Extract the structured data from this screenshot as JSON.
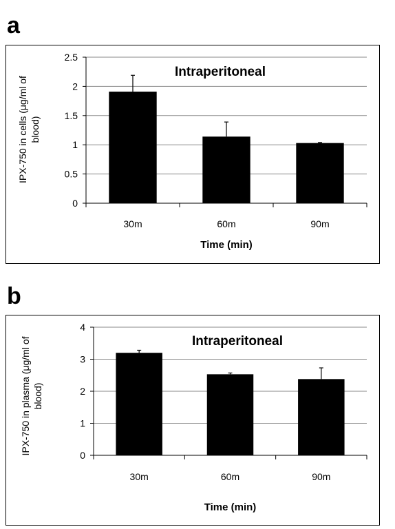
{
  "panels": {
    "a": {
      "letter": "a"
    },
    "b": {
      "letter": "b"
    }
  },
  "chart_data": [
    {
      "type": "bar",
      "title": "Intraperitoneal",
      "xlabel": "Time (min)",
      "ylabel_lines": [
        "IPX-750 in cells (μg/ml of",
        "blood)"
      ],
      "categories": [
        "30m",
        "60m",
        "90m"
      ],
      "values": [
        1.91,
        1.14,
        1.03
      ],
      "errors": [
        0.28,
        0.25,
        0.01
      ],
      "ylim": [
        0,
        2.5
      ],
      "yticks": [
        0,
        0.5,
        1,
        1.5,
        2,
        2.5
      ],
      "grid": true,
      "bar_color": "#000000",
      "grid_color": "#888888"
    },
    {
      "type": "bar",
      "title": "Intraperitoneal",
      "xlabel": "Time (min)",
      "ylabel_lines": [
        "IPX-750 in plasma (μg/ml of",
        "blood)"
      ],
      "categories": [
        "30m",
        "60m",
        "90m"
      ],
      "values": [
        3.2,
        2.53,
        2.38
      ],
      "errors": [
        0.08,
        0.04,
        0.35
      ],
      "ylim": [
        0,
        4
      ],
      "yticks": [
        0,
        1,
        2,
        3,
        4
      ],
      "grid": true,
      "bar_color": "#000000",
      "grid_color": "#888888"
    }
  ]
}
